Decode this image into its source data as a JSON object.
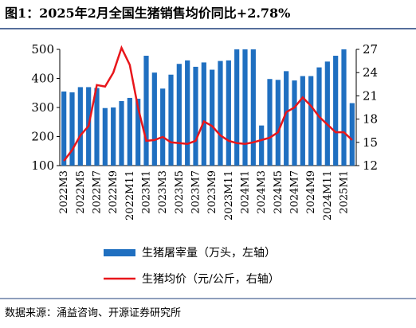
{
  "chart_data": {
    "type": "bar-line",
    "title": "图1：2025年2月全国生猪销售均价同比+2.78%",
    "source": "数据来源：涌益咨询、开源证券研究所",
    "categories": [
      "2022M3",
      null,
      "2022M5",
      null,
      "2022M7",
      null,
      "2022M9",
      null,
      "2022M11",
      null,
      "2023M1",
      null,
      "2023M3",
      null,
      "2023M5",
      null,
      "2023M7",
      null,
      "2023M9",
      null,
      "2023M11",
      null,
      "2024M1",
      null,
      "2024M3",
      null,
      "2024M5",
      null,
      "2024M7",
      null,
      "2024M9",
      null,
      "2024M11",
      null,
      "2025M1",
      null
    ],
    "series": [
      {
        "name": "生猪屠宰量（万头，左轴）",
        "color": "#1f6fc0",
        "axis": "y",
        "values": [
          355,
          352,
          370,
          370,
          367,
          298,
          300,
          322,
          333,
          330,
          478,
          420,
          365,
          413,
          450,
          462,
          440,
          455,
          430,
          460,
          462,
          500,
          500,
          500,
          238,
          398,
          395,
          425,
          393,
          408,
          408,
          438,
          458,
          478,
          500,
          315
        ]
      },
      {
        "name": "生猪均价（元/公斤，右轴）",
        "color": "#e8161b",
        "axis": "y2",
        "values": [
          12.6,
          14,
          15.9,
          17.1,
          22.4,
          22.2,
          24,
          27.2,
          25,
          19.5,
          15.2,
          15.3,
          15.7,
          15,
          14.9,
          14.8,
          15.2,
          17.7,
          17.1,
          15.9,
          15.2,
          14.9,
          14.8,
          15,
          15.3,
          15.6,
          16.3,
          18.9,
          19.5,
          20.8,
          19.7,
          18.3,
          17.3,
          16.3,
          16.3,
          15.3
        ]
      }
    ],
    "ylim": [
      100,
      500
    ],
    "yticks": [
      100,
      200,
      300,
      400,
      500
    ],
    "y2lim": [
      12,
      27
    ],
    "y2ticks": [
      12,
      15,
      18,
      21,
      24,
      27
    ]
  }
}
